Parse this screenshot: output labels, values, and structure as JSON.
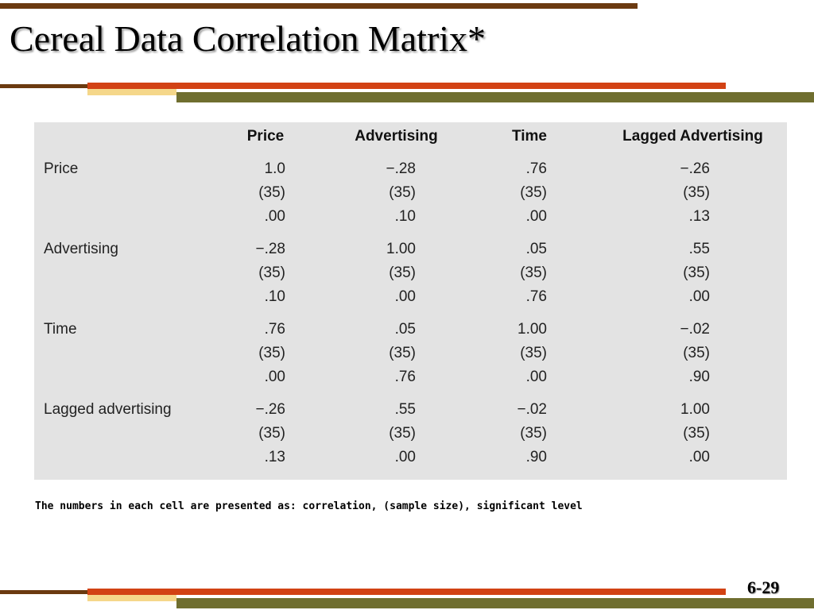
{
  "slide": {
    "title": "Cereal Data Correlation Matrix*",
    "footnote": "The numbers in each cell are presented as: correlation, (sample size), significant level",
    "slide_number": "6-29"
  },
  "colors": {
    "brown": "#6b3a10",
    "orange_red": "#d24214",
    "olive": "#6f6e2f",
    "pale_yellow": "#f5d78a",
    "table_bg": "#e3e3e3"
  },
  "table": {
    "columns": [
      "Price",
      "Advertising",
      "Time",
      "Lagged Advertising"
    ],
    "rows": [
      {
        "label": "Price",
        "cells": [
          [
            "1.0",
            "(35)",
            ".00"
          ],
          [
            "−.28",
            "(35)",
            ".10"
          ],
          [
            ".76",
            "(35)",
            ".00"
          ],
          [
            "−.26",
            "(35)",
            ".13"
          ]
        ]
      },
      {
        "label": "Advertising",
        "cells": [
          [
            "−.28",
            "(35)",
            ".10"
          ],
          [
            "1.00",
            "(35)",
            ".00"
          ],
          [
            ".05",
            "(35)",
            ".76"
          ],
          [
            ".55",
            "(35)",
            ".00"
          ]
        ]
      },
      {
        "label": "Time",
        "cells": [
          [
            ".76",
            "(35)",
            ".00"
          ],
          [
            ".05",
            "(35)",
            ".76"
          ],
          [
            "1.00",
            "(35)",
            ".00"
          ],
          [
            "−.02",
            "(35)",
            ".90"
          ]
        ]
      },
      {
        "label": "Lagged advertising",
        "cells": [
          [
            "−.26",
            "(35)",
            ".13"
          ],
          [
            ".55",
            "(35)",
            ".00"
          ],
          [
            "−.02",
            "(35)",
            ".90"
          ],
          [
            "1.00",
            "(35)",
            ".00"
          ]
        ]
      }
    ]
  }
}
